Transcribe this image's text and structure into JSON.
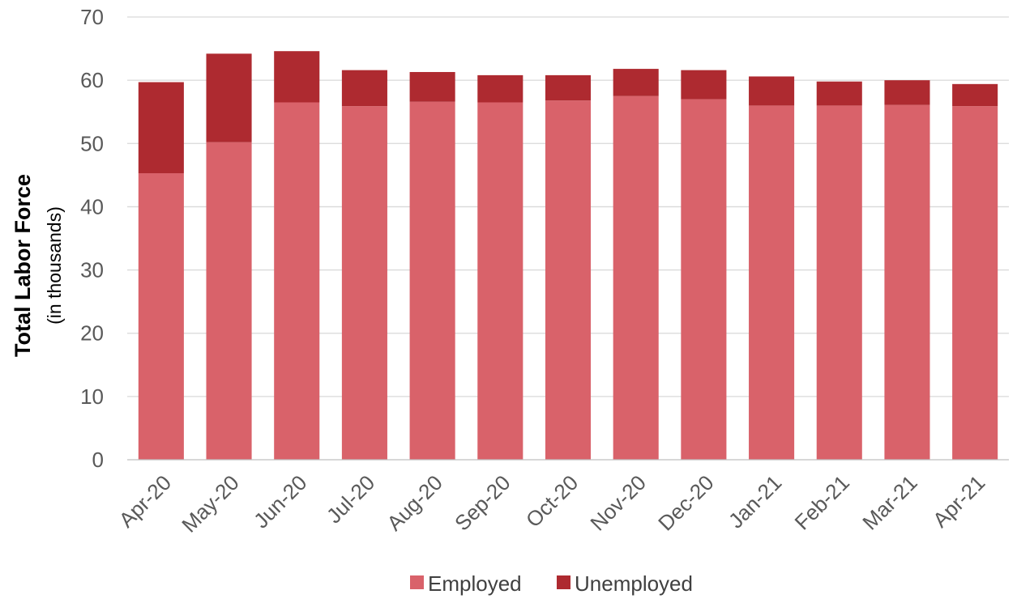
{
  "chart_data": {
    "type": "bar",
    "stacked": true,
    "categories": [
      "Apr-20",
      "May-20",
      "Jun-20",
      "Jul-20",
      "Aug-20",
      "Sep-20",
      "Oct-20",
      "Nov-20",
      "Dec-20",
      "Jan-21",
      "Feb-21",
      "Mar-21",
      "Apr-21"
    ],
    "series": [
      {
        "name": "Employed",
        "color": "#d9626a",
        "values": [
          45.3,
          50.2,
          56.5,
          55.9,
          56.6,
          56.5,
          56.8,
          57.5,
          57.0,
          56.0,
          56.0,
          56.1,
          55.9
        ]
      },
      {
        "name": "Unemployed",
        "color": "#ae2a30",
        "values": [
          14.4,
          14.0,
          8.1,
          5.7,
          4.7,
          4.3,
          4.0,
          4.3,
          4.6,
          4.6,
          3.8,
          3.9,
          3.5
        ]
      }
    ],
    "ylabel": "Total Labor Force",
    "ylabel_sub": "(in thousands)",
    "xlabel": "",
    "ylim": [
      0,
      70
    ],
    "yticks": [
      0,
      10,
      20,
      30,
      40,
      50,
      60,
      70
    ],
    "grid": true,
    "legend_position": "bottom-center"
  }
}
